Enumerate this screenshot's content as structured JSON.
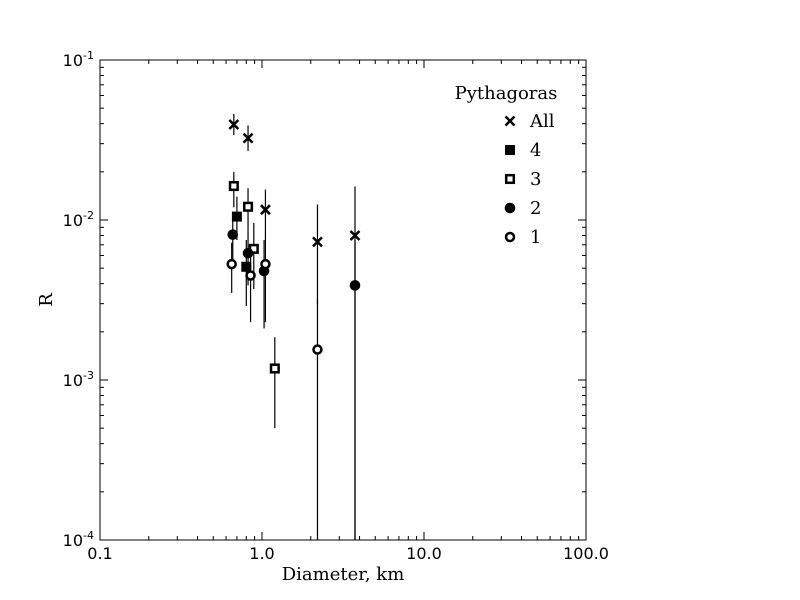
{
  "chart_data": {
    "type": "scatter",
    "xlabel": "Diameter, km",
    "ylabel": "R",
    "x_scale": "log",
    "y_scale": "log",
    "xlim": [
      0.1,
      100.0
    ],
    "ylim": [
      0.0001,
      0.1
    ],
    "x_tick_labels": [
      "0.1",
      "1.0",
      "10.0",
      "100.0"
    ],
    "y_tick_labels": [
      {
        "base": "10",
        "exp": "-4"
      },
      {
        "base": "10",
        "exp": "-3"
      },
      {
        "base": "10",
        "exp": "-2"
      },
      {
        "base": "10",
        "exp": "-1"
      }
    ],
    "legend": {
      "title": "Pythagoras",
      "position": "top-right"
    },
    "series": [
      {
        "name": "All",
        "marker": "x",
        "points": [
          {
            "x": 0.67,
            "y": 0.0395,
            "ylo": 0.034,
            "yhi": 0.046
          },
          {
            "x": 0.82,
            "y": 0.0325,
            "ylo": 0.027,
            "yhi": 0.039
          },
          {
            "x": 1.05,
            "y": 0.0116,
            "ylo": 0.0082,
            "yhi": 0.0155
          },
          {
            "x": 2.2,
            "y": 0.0073,
            "ylo": 0.003,
            "yhi": 0.0125
          },
          {
            "x": 3.75,
            "y": 0.008,
            "ylo": 0.0001,
            "yhi": 0.0162
          }
        ]
      },
      {
        "name": "4",
        "marker": "filled-square",
        "points": [
          {
            "x": 0.7,
            "y": 0.0105,
            "ylo": 0.0075,
            "yhi": 0.014
          },
          {
            "x": 0.8,
            "y": 0.0051,
            "ylo": 0.0029,
            "yhi": 0.0075
          }
        ]
      },
      {
        "name": "3",
        "marker": "open-square",
        "points": [
          {
            "x": 0.67,
            "y": 0.0163,
            "ylo": 0.012,
            "yhi": 0.02
          },
          {
            "x": 0.82,
            "y": 0.0121,
            "ylo": 0.0085,
            "yhi": 0.0158
          },
          {
            "x": 0.89,
            "y": 0.0066,
            "ylo": 0.0037,
            "yhi": 0.0096
          },
          {
            "x": 1.2,
            "y": 0.00118,
            "ylo": 0.0005,
            "yhi": 0.00185
          }
        ]
      },
      {
        "name": "2",
        "marker": "filled-circle",
        "points": [
          {
            "x": 0.66,
            "y": 0.0081,
            "ylo": 0.0055,
            "yhi": 0.0105
          },
          {
            "x": 0.82,
            "y": 0.0062,
            "ylo": 0.0039,
            "yhi": 0.0085
          },
          {
            "x": 1.03,
            "y": 0.0048,
            "ylo": 0.0021,
            "yhi": 0.0075
          },
          {
            "x": 3.75,
            "y": 0.0039,
            "ylo": 0.0001,
            "yhi": 0.0075
          }
        ]
      },
      {
        "name": "1",
        "marker": "open-circle",
        "points": [
          {
            "x": 0.65,
            "y": 0.0053,
            "ylo": 0.0035,
            "yhi": 0.0072
          },
          {
            "x": 0.85,
            "y": 0.0045,
            "ylo": 0.0023,
            "yhi": 0.0068
          },
          {
            "x": 1.05,
            "y": 0.0053,
            "ylo": 0.0023,
            "yhi": 0.0083
          },
          {
            "x": 2.2,
            "y": 0.00155,
            "ylo": 0.0001,
            "yhi": 0.0032
          }
        ]
      }
    ]
  }
}
